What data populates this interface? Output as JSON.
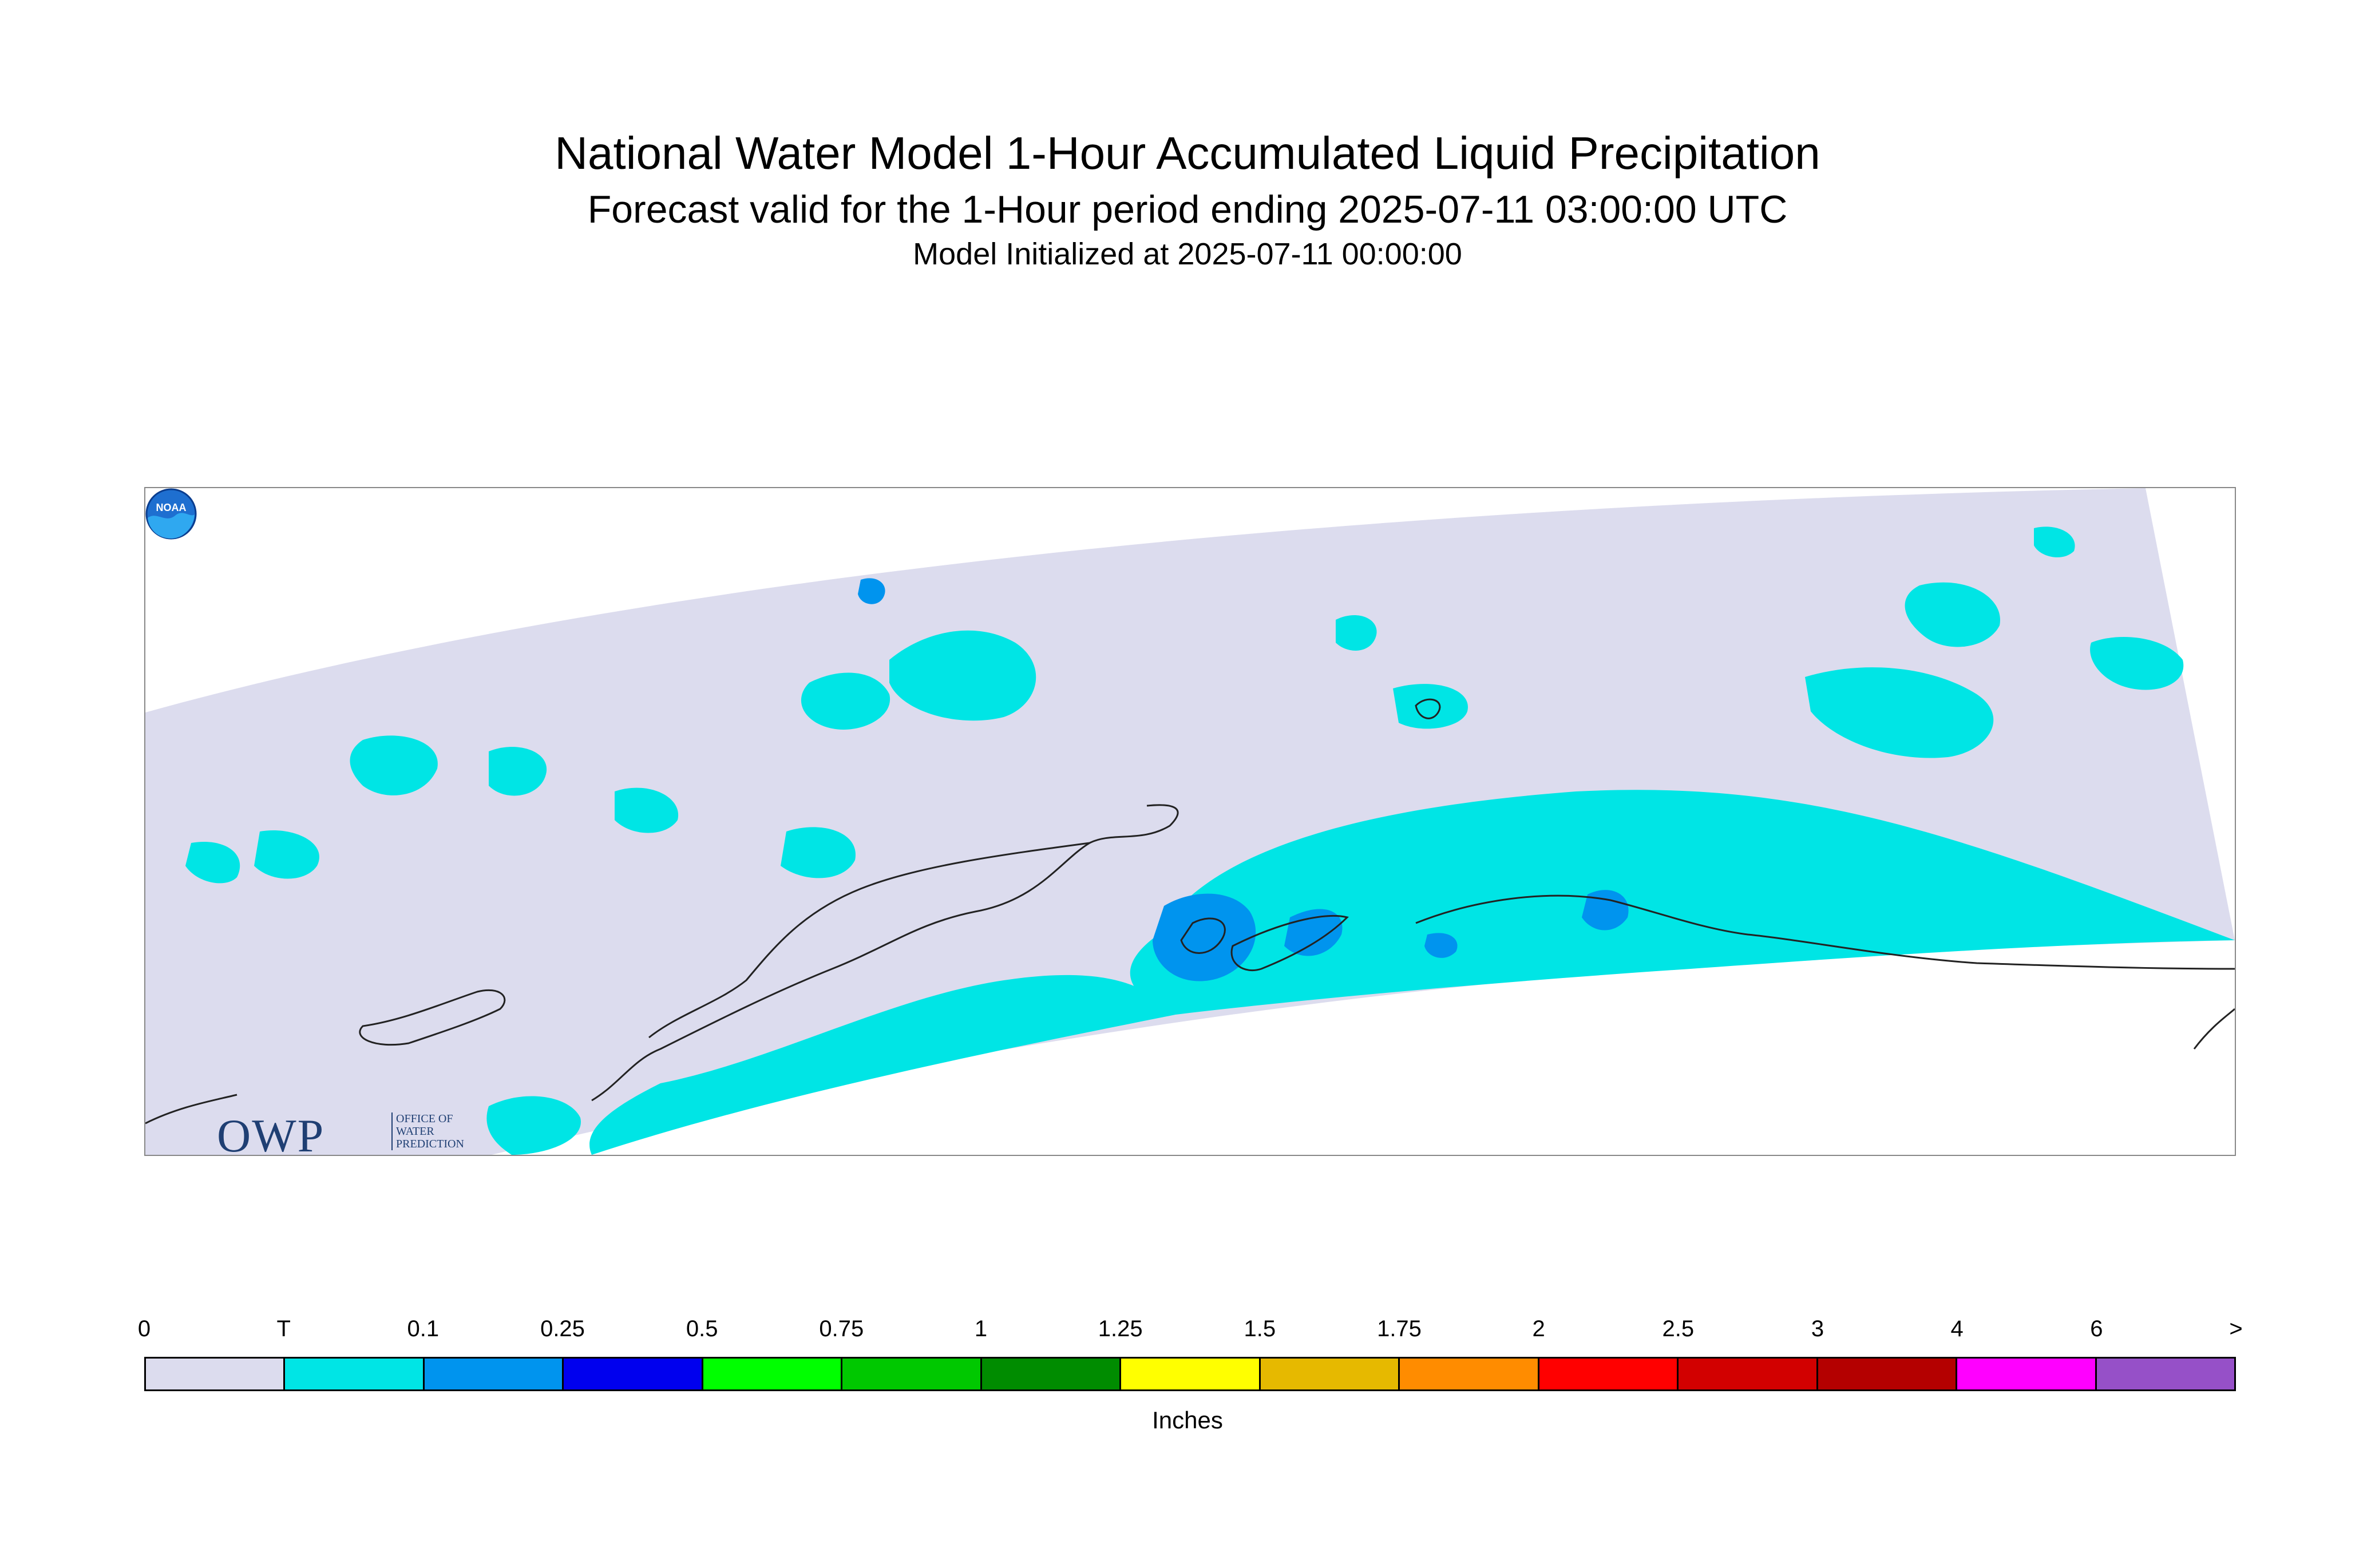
{
  "title": {
    "line1": "National Water Model 1-Hour Accumulated Liquid Precipitation",
    "line2": "Forecast valid for the 1-Hour period ending 2025-07-11 03:00:00 UTC",
    "line3": "Model Initialized at 2025-07-11 00:00:00"
  },
  "map": {
    "region_colors": {
      "background": "#ffffff",
      "no_precip": "#dcdcee",
      "trace": "#00e5e5",
      "light": "#0094ee",
      "coastline": "#222222"
    },
    "logos": {
      "owp": {
        "letters": "OWP",
        "text": "OFFICE OF\nWATER\nPREDICTION",
        "icon": "owp-logo"
      },
      "noaa": {
        "text": "NOAA",
        "icon": "noaa-logo"
      }
    }
  },
  "colorbar": {
    "tick_labels": [
      "0",
      "T",
      "0.1",
      "0.25",
      "0.5",
      "0.75",
      "1",
      "1.25",
      "1.5",
      "1.75",
      "2",
      "2.5",
      "3",
      "4",
      "6",
      ">"
    ],
    "colors": [
      "#dcdcee",
      "#00e5e5",
      "#0094ee",
      "#0000ee",
      "#00ff00",
      "#00c800",
      "#008c00",
      "#ffff00",
      "#e6b900",
      "#ff8c00",
      "#ff0000",
      "#d20000",
      "#b40000",
      "#ff00ff",
      "#9650c8"
    ],
    "units": "Inches"
  }
}
